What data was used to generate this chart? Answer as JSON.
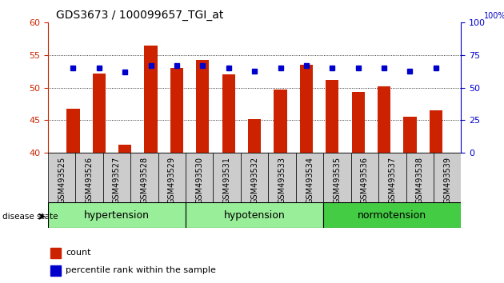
{
  "title": "GDS3673 / 100099657_TGI_at",
  "samples": [
    "GSM493525",
    "GSM493526",
    "GSM493527",
    "GSM493528",
    "GSM493529",
    "GSM493530",
    "GSM493531",
    "GSM493532",
    "GSM493533",
    "GSM493534",
    "GSM493535",
    "GSM493536",
    "GSM493537",
    "GSM493538",
    "GSM493539"
  ],
  "counts": [
    46.8,
    52.2,
    41.2,
    56.5,
    53.0,
    54.3,
    52.0,
    45.2,
    49.7,
    53.5,
    51.2,
    49.3,
    50.2,
    45.5,
    46.5
  ],
  "percentiles": [
    65,
    65,
    62,
    67,
    67,
    67,
    65,
    63,
    65,
    67,
    65,
    65,
    65,
    63,
    65
  ],
  "ylim_left": [
    40,
    60
  ],
  "ylim_right": [
    0,
    100
  ],
  "yticks_left": [
    40,
    45,
    50,
    55,
    60
  ],
  "yticks_right": [
    0,
    25,
    50,
    75,
    100
  ],
  "bar_color": "#cc2200",
  "dot_color": "#0000cc",
  "bar_width": 0.5,
  "legend_items": [
    "count",
    "percentile rank within the sample"
  ],
  "label_fontsize": 7,
  "title_fontsize": 10,
  "group_label_fontsize": 9,
  "disease_label": "disease state",
  "group_data": [
    {
      "label": "hypertension",
      "start": 0,
      "end": 5,
      "color": "#99ee99"
    },
    {
      "label": "hypotension",
      "start": 5,
      "end": 10,
      "color": "#99ee99"
    },
    {
      "label": "normotension",
      "start": 10,
      "end": 15,
      "color": "#44cc44"
    }
  ],
  "tick_label_bg": "#dddddd",
  "right_axis_label": "100%"
}
